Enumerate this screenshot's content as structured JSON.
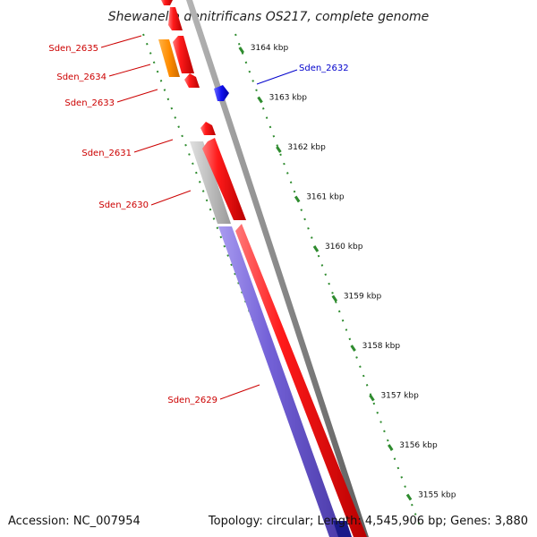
{
  "title": "Shewanella denitrificans OS217, complete genome",
  "footer": {
    "accession": "Accession: NC_007954",
    "summary": "Topology: circular; Length: 4,545,906 bp; Genes: 3,880"
  },
  "colors": {
    "backbone": "#8c8c8c",
    "tick": "#2e8b2e",
    "red_gene": "#ee0000",
    "blue_gene": "#1010ee",
    "orange_gene": "#ff8c00",
    "gray_feature": "#bdbdbd",
    "purple_feature": "#7b68d8",
    "label_red": "#cc0000",
    "label_blue": "#0000cc"
  },
  "scale_ticks": [
    {
      "kbp": 3164,
      "label": "3164 kbp"
    },
    {
      "kbp": 3163,
      "label": "3163 kbp"
    },
    {
      "kbp": 3162,
      "label": "3162 kbp"
    },
    {
      "kbp": 3161,
      "label": "3161 kbp"
    },
    {
      "kbp": 3160,
      "label": "3160 kbp"
    },
    {
      "kbp": 3159,
      "label": "3159 kbp"
    },
    {
      "kbp": 3158,
      "label": "3158 kbp"
    },
    {
      "kbp": 3157,
      "label": "3157 kbp"
    },
    {
      "kbp": 3156,
      "label": "3156 kbp"
    },
    {
      "kbp": 3155,
      "label": "3155 kbp"
    }
  ],
  "genes": [
    {
      "name": "Sden_2635",
      "strand": "reverse",
      "color": "red"
    },
    {
      "name": "Sden_2634",
      "strand": "reverse",
      "color": "red"
    },
    {
      "name": "Sden_2633",
      "strand": "reverse",
      "color": "red"
    },
    {
      "name": "Sden_2632",
      "strand": "forward",
      "color": "blue"
    },
    {
      "name": "Sden_2631",
      "strand": "reverse",
      "color": "red"
    },
    {
      "name": "Sden_2630",
      "strand": "reverse",
      "color": "red"
    },
    {
      "name": "Sden_2629",
      "strand": "reverse",
      "color": "red"
    }
  ]
}
